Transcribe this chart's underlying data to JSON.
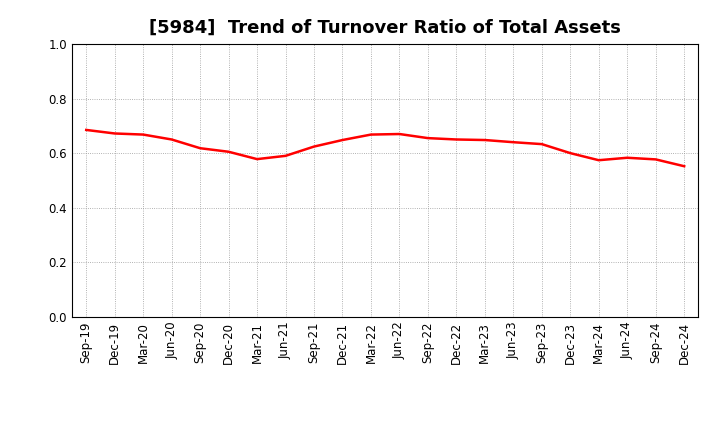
{
  "title": "[5984]  Trend of Turnover Ratio of Total Assets",
  "x_labels": [
    "Sep-19",
    "Dec-19",
    "Mar-20",
    "Jun-20",
    "Sep-20",
    "Dec-20",
    "Mar-21",
    "Jun-21",
    "Sep-21",
    "Dec-21",
    "Mar-22",
    "Jun-22",
    "Sep-22",
    "Dec-22",
    "Mar-23",
    "Jun-23",
    "Sep-23",
    "Dec-23",
    "Mar-24",
    "Jun-24",
    "Sep-24",
    "Dec-24"
  ],
  "y_values": [
    0.685,
    0.672,
    0.668,
    0.65,
    0.618,
    0.605,
    0.578,
    0.59,
    0.624,
    0.648,
    0.668,
    0.67,
    0.655,
    0.65,
    0.648,
    0.64,
    0.633,
    0.6,
    0.574,
    0.583,
    0.577,
    0.552
  ],
  "line_color": "#ff0000",
  "line_width": 1.8,
  "ylim": [
    0.0,
    1.0
  ],
  "yticks": [
    0.0,
    0.2,
    0.4,
    0.6,
    0.8,
    1.0
  ],
  "background_color": "#ffffff",
  "grid_color": "#999999",
  "title_fontsize": 13,
  "tick_fontsize": 8.5
}
